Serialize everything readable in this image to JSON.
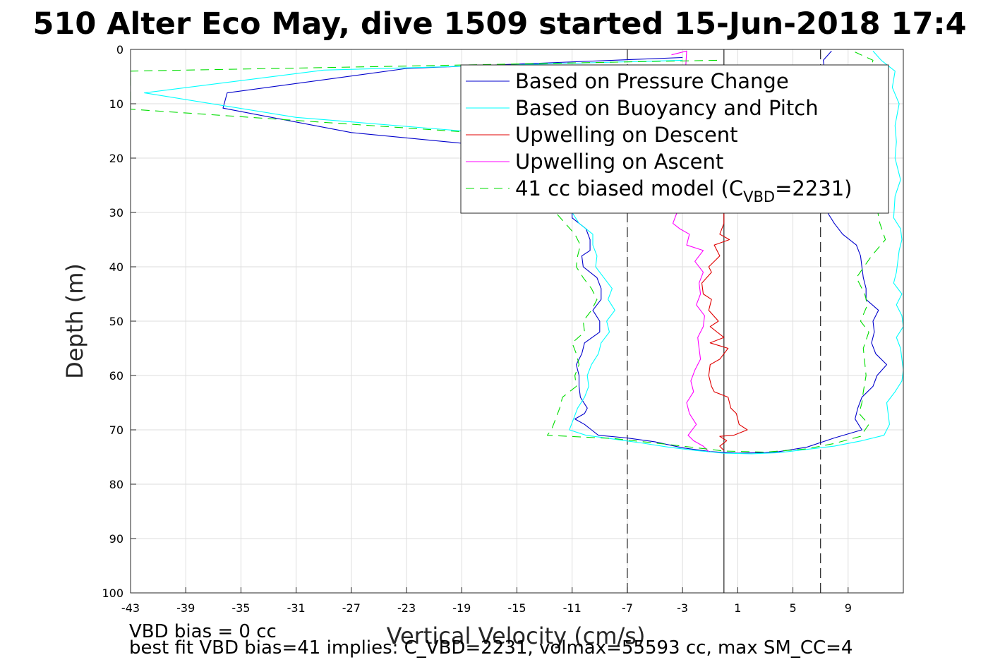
{
  "chart_data": {
    "type": "line",
    "title": "510 Alter Eco May, dive 1509 started 15-Jun-2018 17:4",
    "xlabel": "Vertical Velocity (cm/s)",
    "ylabel": "Depth (m)",
    "xlim": [
      -43,
      13
    ],
    "ylim": [
      0,
      100
    ],
    "y_reversed": true,
    "xticks": [
      -43,
      -39,
      -35,
      -31,
      -27,
      -23,
      -19,
      -15,
      -11,
      -7,
      -3,
      1,
      5,
      9
    ],
    "yticks": [
      0,
      10,
      20,
      30,
      40,
      50,
      60,
      70,
      80,
      90,
      100
    ],
    "grid": true,
    "legend_position": "top-right",
    "reference_lines": [
      {
        "x": -7,
        "style": "dashed",
        "color": "#333333"
      },
      {
        "x": 0,
        "style": "solid",
        "color": "#333333"
      },
      {
        "x": 7,
        "style": "dashed",
        "color": "#333333"
      }
    ],
    "series": [
      {
        "name": "Based on Pressure Change",
        "color": "#0000cc",
        "dash": "",
        "points": [
          [
            -3,
            1.5
          ],
          [
            -23,
            3.5
          ],
          [
            -36,
            8
          ],
          [
            -36.3,
            10.8
          ],
          [
            -27,
            15.3
          ],
          [
            -18,
            17.5
          ],
          [
            -15,
            20
          ],
          [
            -13,
            26
          ],
          [
            -11,
            30
          ],
          [
            -11,
            31
          ],
          [
            -10,
            33
          ],
          [
            -9.7,
            35
          ],
          [
            -9.7,
            37
          ],
          [
            -10.3,
            38
          ],
          [
            -10.2,
            40
          ],
          [
            -9.2,
            42
          ],
          [
            -8.9,
            44
          ],
          [
            -8.9,
            46
          ],
          [
            -9.5,
            48
          ],
          [
            -9,
            50
          ],
          [
            -9,
            52
          ],
          [
            -10.1,
            54
          ],
          [
            -10.3,
            56
          ],
          [
            -10.7,
            58
          ],
          [
            -10.5,
            60
          ],
          [
            -10.5,
            62
          ],
          [
            -10.4,
            64
          ],
          [
            -9.9,
            66
          ],
          [
            -10.1,
            67
          ],
          [
            -10.8,
            68
          ],
          [
            -10.1,
            69
          ],
          [
            -9.6,
            70
          ],
          [
            -9.1,
            71
          ],
          [
            -7,
            71.5
          ],
          [
            -5,
            72.2
          ],
          [
            -3,
            73.3
          ],
          [
            -1,
            74
          ],
          [
            1,
            74.3
          ],
          [
            3,
            74.2
          ],
          [
            4,
            74
          ],
          [
            6,
            73.2
          ],
          [
            8,
            71.5
          ],
          [
            10,
            70
          ],
          [
            9.5,
            68
          ],
          [
            9.7,
            66
          ],
          [
            10,
            64
          ],
          [
            10.8,
            62
          ],
          [
            11.1,
            60
          ],
          [
            11.8,
            58
          ],
          [
            11,
            56
          ],
          [
            10.7,
            54
          ],
          [
            10.9,
            52
          ],
          [
            10.8,
            50
          ],
          [
            11.2,
            48
          ],
          [
            10.3,
            46
          ],
          [
            10.3,
            44
          ],
          [
            10.1,
            42
          ],
          [
            10,
            40
          ],
          [
            9.9,
            38
          ],
          [
            9.6,
            36
          ],
          [
            8.6,
            34
          ],
          [
            8,
            32
          ],
          [
            7.5,
            30
          ],
          [
            8,
            27
          ],
          [
            8,
            24
          ],
          [
            7.5,
            18
          ],
          [
            7.2,
            12
          ],
          [
            7,
            8
          ],
          [
            7.3,
            4
          ],
          [
            7.2,
            2
          ],
          [
            7.8,
            0.3
          ]
        ]
      },
      {
        "name": "Based on Buoyancy and Pitch",
        "color": "#00ffff",
        "dash": "",
        "points": [
          [
            -3,
            2
          ],
          [
            -29,
            3.8
          ],
          [
            -42,
            8
          ],
          [
            -31,
            12.5
          ],
          [
            -19,
            15
          ],
          [
            -14,
            20
          ],
          [
            -12,
            25
          ],
          [
            -11,
            30
          ],
          [
            -10.5,
            32
          ],
          [
            -9.5,
            34
          ],
          [
            -9.5,
            36
          ],
          [
            -9.2,
            38
          ],
          [
            -9.3,
            40
          ],
          [
            -8.7,
            42
          ],
          [
            -8.1,
            44
          ],
          [
            -8.4,
            46
          ],
          [
            -7.9,
            48
          ],
          [
            -8.5,
            50
          ],
          [
            -8.3,
            52
          ],
          [
            -8.9,
            54
          ],
          [
            -9.1,
            56
          ],
          [
            -9.6,
            58
          ],
          [
            -9.9,
            60
          ],
          [
            -9.8,
            62
          ],
          [
            -10.1,
            64
          ],
          [
            -10.6,
            66
          ],
          [
            -10.9,
            68
          ],
          [
            -11.2,
            70
          ],
          [
            -10,
            71
          ],
          [
            -8,
            71.7
          ],
          [
            -6,
            72.4
          ],
          [
            -4,
            73.2
          ],
          [
            -2,
            73.8
          ],
          [
            0,
            74.3
          ],
          [
            2,
            74.4
          ],
          [
            4,
            74.2
          ],
          [
            6,
            73.6
          ],
          [
            8,
            73
          ],
          [
            10,
            72
          ],
          [
            11.6,
            71
          ],
          [
            12,
            69
          ],
          [
            11.9,
            67
          ],
          [
            11.8,
            65
          ],
          [
            12.4,
            63
          ],
          [
            12.9,
            61
          ],
          [
            13,
            59
          ],
          [
            12.9,
            57
          ],
          [
            12.8,
            55
          ],
          [
            12.5,
            53
          ],
          [
            13,
            51
          ],
          [
            12.9,
            49
          ],
          [
            12.5,
            47
          ],
          [
            12.9,
            45
          ],
          [
            12.3,
            43
          ],
          [
            12.5,
            41
          ],
          [
            12.6,
            39
          ],
          [
            12.7,
            37
          ],
          [
            12.9,
            35
          ],
          [
            12.8,
            33
          ],
          [
            12.3,
            31
          ],
          [
            12.4,
            27
          ],
          [
            12.8,
            24
          ],
          [
            12.4,
            20
          ],
          [
            12.5,
            17
          ],
          [
            12.4,
            14
          ],
          [
            12.7,
            10
          ],
          [
            12.2,
            7
          ],
          [
            12.4,
            4
          ],
          [
            11.4,
            2
          ],
          [
            10.8,
            0.3
          ]
        ]
      },
      {
        "name": "Upwelling on Descent",
        "color": "#e00000",
        "dash": "",
        "points": [
          [
            0,
            30
          ],
          [
            0,
            32
          ],
          [
            -0.3,
            34
          ],
          [
            0.4,
            35
          ],
          [
            -0.7,
            36
          ],
          [
            -0.3,
            38
          ],
          [
            -1.1,
            40
          ],
          [
            -0.9,
            41
          ],
          [
            -1.6,
            43
          ],
          [
            -1.5,
            45
          ],
          [
            -0.9,
            46
          ],
          [
            -1.1,
            48
          ],
          [
            -0.4,
            50
          ],
          [
            -1,
            51
          ],
          [
            0,
            53
          ],
          [
            -1,
            54
          ],
          [
            0.3,
            55
          ],
          [
            -0.3,
            57
          ],
          [
            -1,
            58
          ],
          [
            -1.1,
            60
          ],
          [
            -0.9,
            62
          ],
          [
            -0.7,
            63
          ],
          [
            0.3,
            64
          ],
          [
            0.5,
            66
          ],
          [
            0.9,
            67
          ],
          [
            1.1,
            69
          ],
          [
            1.7,
            70
          ],
          [
            0.7,
            71
          ],
          [
            -0.3,
            71.2
          ],
          [
            0.2,
            72
          ],
          [
            -0.3,
            73
          ],
          [
            0,
            73.8
          ]
        ]
      },
      {
        "name": "Upwelling on Ascent",
        "color": "#ff00ff",
        "dash": "",
        "points": [
          [
            -3.8,
            1
          ],
          [
            -2.7,
            0.3
          ],
          [
            -3.4,
            30
          ],
          [
            -3.7,
            32
          ],
          [
            -3.2,
            33
          ],
          [
            -2.5,
            34
          ],
          [
            -2.7,
            36
          ],
          [
            -1.5,
            37
          ],
          [
            -2.1,
            39
          ],
          [
            -1.5,
            41
          ],
          [
            -1.8,
            43
          ],
          [
            -1.7,
            45
          ],
          [
            -2,
            47
          ],
          [
            -1.4,
            49
          ],
          [
            -1.5,
            51
          ],
          [
            -1.9,
            53
          ],
          [
            -1.8,
            55
          ],
          [
            -1.7,
            57
          ],
          [
            -2.1,
            59
          ],
          [
            -2.4,
            61
          ],
          [
            -2.2,
            63
          ],
          [
            -2.7,
            65
          ],
          [
            -2.5,
            67
          ],
          [
            -2,
            69
          ],
          [
            -2.6,
            71
          ],
          [
            -2.2,
            72
          ],
          [
            -1.5,
            73
          ],
          [
            -1.1,
            74
          ]
        ]
      },
      {
        "name": "41 cc biased model (C_VBD=2231)",
        "legend_label_main": "41 cc biased model (C",
        "legend_label_sub": "VBD",
        "legend_label_end": "=2231)",
        "color": "#00dd00",
        "dash": "12,8",
        "points": [
          [
            -0.5,
            2
          ],
          [
            -43,
            4
          ],
          [
            -43,
            11
          ],
          [
            -17,
            15.5
          ],
          [
            -14,
            20
          ],
          [
            -12,
            25
          ],
          [
            -12.2,
            30
          ],
          [
            -11.5,
            32
          ],
          [
            -10.8,
            34
          ],
          [
            -10.4,
            36
          ],
          [
            -10.6,
            38
          ],
          [
            -10.7,
            40
          ],
          [
            -10.2,
            42
          ],
          [
            -9.6,
            44
          ],
          [
            -9.2,
            46
          ],
          [
            -9.6,
            48
          ],
          [
            -10.2,
            50
          ],
          [
            -10.1,
            52
          ],
          [
            -11,
            54
          ],
          [
            -10.7,
            56
          ],
          [
            -10.5,
            58
          ],
          [
            -10.8,
            60
          ],
          [
            -10.7,
            62
          ],
          [
            -11.7,
            64
          ],
          [
            -11.9,
            66
          ],
          [
            -12.2,
            68
          ],
          [
            -12.5,
            70
          ],
          [
            -12.8,
            71
          ],
          [
            -8,
            71.6
          ],
          [
            -4,
            72.7
          ],
          [
            0,
            73.9
          ],
          [
            3,
            74.1
          ],
          [
            6,
            73.5
          ],
          [
            8,
            72.5
          ],
          [
            9.9,
            71.2
          ],
          [
            10.5,
            69
          ],
          [
            9.8,
            67
          ],
          [
            10,
            65
          ],
          [
            10.1,
            63
          ],
          [
            10.3,
            60
          ],
          [
            10.1,
            55
          ],
          [
            10.5,
            52
          ],
          [
            9.9,
            50
          ],
          [
            10.4,
            47
          ],
          [
            10.2,
            45
          ],
          [
            9.6,
            42
          ],
          [
            10.7,
            38
          ],
          [
            11.7,
            35
          ],
          [
            11.3,
            32
          ],
          [
            11,
            28
          ],
          [
            11.2,
            25
          ],
          [
            11,
            20
          ],
          [
            11,
            15
          ],
          [
            10.6,
            10
          ],
          [
            10.5,
            5
          ],
          [
            10.8,
            2
          ],
          [
            9.5,
            0.5
          ]
        ]
      }
    ],
    "annotations": [
      "VBD bias = 0 cc",
      "best fit VBD bias=41 implies: C_VBD=2231, volmax=55593 cc, max SM_CC=4"
    ]
  }
}
